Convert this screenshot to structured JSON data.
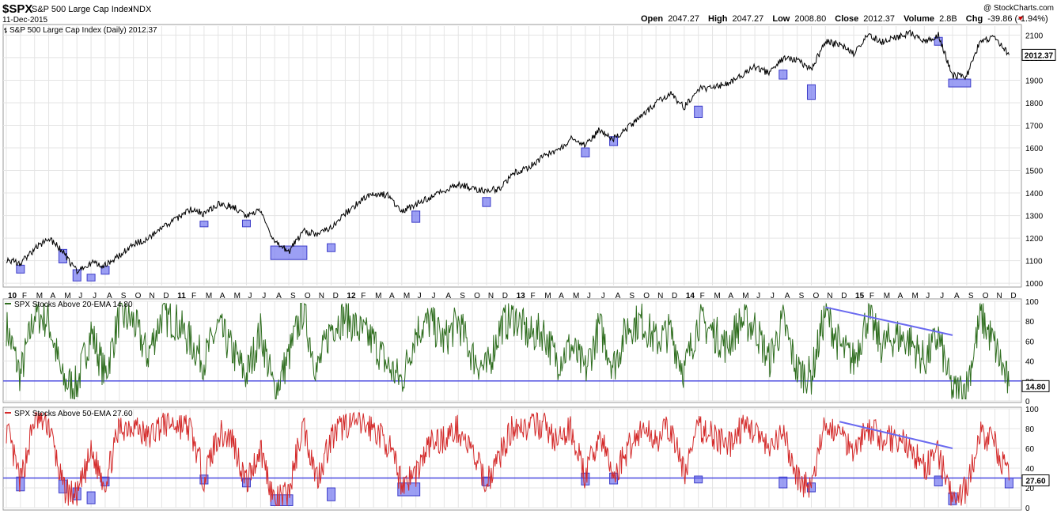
{
  "header": {
    "symbol": "$SPX",
    "name": "S&P 500 Large Cap Index",
    "exchange": "INDX",
    "date": "11-Dec-2015",
    "watermark": "@ StockCharts.com",
    "open_label": "Open",
    "open_value": "2047.27",
    "high_label": "High",
    "high_value": "2047.27",
    "low_label": "Low",
    "low_value": "2008.80",
    "close_label": "Close",
    "close_value": "2012.37",
    "volume_label": "Volume",
    "volume_value": "2.8B",
    "chg_label": "Chg",
    "chg_value": "-39.86 (-1.94%)",
    "chg_color": "#cc0000"
  },
  "chart_data": [
    {
      "type": "line",
      "title": "S&P 500 Large Cap Index (Daily) 2012.37",
      "ylim": [
        990,
        2140
      ],
      "yticks": [
        1000,
        1100,
        1200,
        1300,
        1400,
        1500,
        1600,
        1700,
        1800,
        1900,
        2000,
        2100
      ],
      "last_value_label": "2012.37",
      "line_color": "#000000",
      "x": [
        "2010-01",
        "2010-02",
        "2010-03",
        "2010-04",
        "2010-05",
        "2010-06",
        "2010-07",
        "2010-08",
        "2010-09",
        "2010-10",
        "2010-11",
        "2010-12",
        "2011-01",
        "2011-02",
        "2011-03",
        "2011-04",
        "2011-05",
        "2011-06",
        "2011-07",
        "2011-08",
        "2011-09",
        "2011-10",
        "2011-11",
        "2011-12",
        "2012-01",
        "2012-02",
        "2012-03",
        "2012-04",
        "2012-05",
        "2012-06",
        "2012-07",
        "2012-08",
        "2012-09",
        "2012-10",
        "2012-11",
        "2012-12",
        "2013-01",
        "2013-02",
        "2013-03",
        "2013-04",
        "2013-05",
        "2013-06",
        "2013-07",
        "2013-08",
        "2013-09",
        "2013-10",
        "2013-11",
        "2013-12",
        "2014-01",
        "2014-02",
        "2014-03",
        "2014-04",
        "2014-05",
        "2014-06",
        "2014-07",
        "2014-08",
        "2014-09",
        "2014-10",
        "2014-11",
        "2014-12",
        "2015-01",
        "2015-02",
        "2015-03",
        "2015-04",
        "2015-05",
        "2015-06",
        "2015-07",
        "2015-08",
        "2015-09",
        "2015-10",
        "2015-11",
        "2015-12"
      ],
      "values": [
        1105,
        1090,
        1150,
        1200,
        1140,
        1050,
        1090,
        1080,
        1120,
        1175,
        1195,
        1240,
        1285,
        1325,
        1310,
        1350,
        1340,
        1300,
        1325,
        1180,
        1140,
        1230,
        1220,
        1250,
        1310,
        1360,
        1400,
        1390,
        1320,
        1350,
        1380,
        1410,
        1440,
        1420,
        1410,
        1420,
        1490,
        1515,
        1560,
        1590,
        1640,
        1610,
        1680,
        1640,
        1690,
        1740,
        1800,
        1840,
        1780,
        1860,
        1870,
        1885,
        1920,
        1960,
        1930,
        1995,
        1990,
        1950,
        2070,
        2060,
        2020,
        2100,
        2070,
        2090,
        2110,
        2070,
        2100,
        1920,
        1920,
        2080,
        2085,
        2012.37
      ],
      "highlights": [
        {
          "x0": "2010-02",
          "x1": "2010-02",
          "y0": 1045,
          "y1": 1080
        },
        {
          "x0": "2010-05",
          "x1": "2010-05",
          "y0": 1090,
          "y1": 1150
        },
        {
          "x0": "2010-06",
          "x1": "2010-06",
          "y0": 1010,
          "y1": 1060
        },
        {
          "x0": "2010-07",
          "x1": "2010-07",
          "y0": 1010,
          "y1": 1040
        },
        {
          "x0": "2010-08",
          "x1": "2010-08",
          "y0": 1040,
          "y1": 1075
        },
        {
          "x0": "2011-03",
          "x1": "2011-03",
          "y0": 1250,
          "y1": 1275
        },
        {
          "x0": "2011-06",
          "x1": "2011-06",
          "y0": 1250,
          "y1": 1280
        },
        {
          "x0": "2011-08",
          "x1": "2011-10",
          "y0": 1105,
          "y1": 1165
        },
        {
          "x0": "2011-12",
          "x1": "2011-12",
          "y0": 1140,
          "y1": 1175
        },
        {
          "x0": "2012-06",
          "x1": "2012-06",
          "y0": 1270,
          "y1": 1320
        },
        {
          "x0": "2012-11",
          "x1": "2012-11",
          "y0": 1340,
          "y1": 1380
        },
        {
          "x0": "2013-06",
          "x1": "2013-06",
          "y0": 1560,
          "y1": 1600
        },
        {
          "x0": "2013-08",
          "x1": "2013-08",
          "y0": 1610,
          "y1": 1650
        },
        {
          "x0": "2014-02",
          "x1": "2014-02",
          "y0": 1735,
          "y1": 1785
        },
        {
          "x0": "2014-08",
          "x1": "2014-08",
          "y0": 1905,
          "y1": 1945
        },
        {
          "x0": "2014-10",
          "x1": "2014-10",
          "y0": 1815,
          "y1": 1880
        },
        {
          "x0": "2015-07",
          "x1": "2015-07",
          "y0": 2055,
          "y1": 2090
        },
        {
          "x0": "2015-08",
          "x1": "2015-09",
          "y0": 1870,
          "y1": 1905
        }
      ]
    },
    {
      "type": "line",
      "title": "SPX Stocks Above 20-EMA 14.80",
      "ylim": [
        0,
        100
      ],
      "yticks": [
        0,
        20,
        40,
        60,
        80,
        100
      ],
      "hline": 20,
      "last_value_label": "14.80",
      "line_color": "#2f6e1f",
      "x": [
        "2010-01",
        "2010-02",
        "2010-03",
        "2010-04",
        "2010-05",
        "2010-06",
        "2010-07",
        "2010-08",
        "2010-09",
        "2010-10",
        "2010-11",
        "2010-12",
        "2011-01",
        "2011-02",
        "2011-03",
        "2011-04",
        "2011-05",
        "2011-06",
        "2011-07",
        "2011-08",
        "2011-09",
        "2011-10",
        "2011-11",
        "2011-12",
        "2012-01",
        "2012-02",
        "2012-03",
        "2012-04",
        "2012-05",
        "2012-06",
        "2012-07",
        "2012-08",
        "2012-09",
        "2012-10",
        "2012-11",
        "2012-12",
        "2013-01",
        "2013-02",
        "2013-03",
        "2013-04",
        "2013-05",
        "2013-06",
        "2013-07",
        "2013-08",
        "2013-09",
        "2013-10",
        "2013-11",
        "2013-12",
        "2014-01",
        "2014-02",
        "2014-03",
        "2014-04",
        "2014-05",
        "2014-06",
        "2014-07",
        "2014-08",
        "2014-09",
        "2014-10",
        "2014-11",
        "2014-12",
        "2015-01",
        "2015-02",
        "2015-03",
        "2015-04",
        "2015-05",
        "2015-06",
        "2015-07",
        "2015-08",
        "2015-09",
        "2015-10",
        "2015-11",
        "2015-12"
      ],
      "values": [
        75,
        25,
        88,
        80,
        20,
        15,
        70,
        25,
        85,
        80,
        45,
        85,
        80,
        60,
        40,
        75,
        50,
        25,
        70,
        8,
        45,
        92,
        30,
        75,
        85,
        70,
        60,
        35,
        20,
        70,
        80,
        60,
        80,
        45,
        30,
        75,
        85,
        65,
        70,
        40,
        55,
        30,
        75,
        35,
        75,
        80,
        60,
        70,
        30,
        80,
        70,
        55,
        80,
        75,
        40,
        80,
        30,
        25,
        90,
        55,
        40,
        85,
        55,
        65,
        60,
        40,
        65,
        8,
        15,
        85,
        55,
        14.8
      ],
      "trendline": {
        "x0": "2014-11",
        "y0": 94,
        "x1": "2015-08",
        "y1": 66
      }
    },
    {
      "type": "line",
      "title": "SPX Stocks Above 50-EMA 27.60",
      "ylim": [
        0,
        100
      ],
      "yticks": [
        0,
        20,
        40,
        60,
        80,
        100
      ],
      "hline": 30,
      "last_value_label": "27.60",
      "line_color": "#d42b2b",
      "x": [
        "2010-01",
        "2010-02",
        "2010-03",
        "2010-04",
        "2010-05",
        "2010-06",
        "2010-07",
        "2010-08",
        "2010-09",
        "2010-10",
        "2010-11",
        "2010-12",
        "2011-01",
        "2011-02",
        "2011-03",
        "2011-04",
        "2011-05",
        "2011-06",
        "2011-07",
        "2011-08",
        "2011-09",
        "2011-10",
        "2011-11",
        "2011-12",
        "2012-01",
        "2012-02",
        "2012-03",
        "2012-04",
        "2012-05",
        "2012-06",
        "2012-07",
        "2012-08",
        "2012-09",
        "2012-10",
        "2012-11",
        "2012-12",
        "2013-01",
        "2013-02",
        "2013-03",
        "2013-04",
        "2013-05",
        "2013-06",
        "2013-07",
        "2013-08",
        "2013-09",
        "2013-10",
        "2013-11",
        "2013-12",
        "2014-01",
        "2014-02",
        "2014-03",
        "2014-04",
        "2014-05",
        "2014-06",
        "2014-07",
        "2014-08",
        "2014-09",
        "2014-10",
        "2014-11",
        "2014-12",
        "2015-01",
        "2015-02",
        "2015-03",
        "2015-04",
        "2015-05",
        "2015-06",
        "2015-07",
        "2015-08",
        "2015-09",
        "2015-10",
        "2015-11",
        "2015-12"
      ],
      "values": [
        80,
        25,
        90,
        85,
        20,
        10,
        55,
        25,
        80,
        85,
        70,
        85,
        85,
        80,
        30,
        75,
        70,
        25,
        60,
        5,
        15,
        85,
        30,
        70,
        85,
        85,
        80,
        65,
        25,
        35,
        65,
        70,
        80,
        55,
        25,
        55,
        85,
        80,
        85,
        65,
        80,
        30,
        75,
        30,
        60,
        80,
        70,
        80,
        35,
        80,
        75,
        60,
        80,
        80,
        55,
        75,
        30,
        20,
        85,
        75,
        60,
        80,
        70,
        70,
        60,
        40,
        55,
        5,
        20,
        75,
        65,
        27.6
      ],
      "trendline": {
        "x0": "2014-12",
        "y0": 87,
        "x1": "2015-08",
        "y1": 60
      },
      "highlights": [
        {
          "x0": "2010-02",
          "x1": "2010-02",
          "y0": 17,
          "y1": 31
        },
        {
          "x0": "2010-05",
          "x1": "2010-05",
          "y0": 15,
          "y1": 28
        },
        {
          "x0": "2010-06",
          "x1": "2010-06",
          "y0": 8,
          "y1": 20
        },
        {
          "x0": "2010-07",
          "x1": "2010-07",
          "y0": 4,
          "y1": 16
        },
        {
          "x0": "2010-08",
          "x1": "2010-08",
          "y0": 22,
          "y1": 31
        },
        {
          "x0": "2011-03",
          "x1": "2011-03",
          "y0": 24,
          "y1": 33
        },
        {
          "x0": "2011-06",
          "x1": "2011-06",
          "y0": 21,
          "y1": 29
        },
        {
          "x0": "2011-08",
          "x1": "2011-09",
          "y0": 2,
          "y1": 13
        },
        {
          "x0": "2011-12",
          "x1": "2011-12",
          "y0": 7,
          "y1": 20
        },
        {
          "x0": "2012-05",
          "x1": "2012-06",
          "y0": 12,
          "y1": 25
        },
        {
          "x0": "2012-11",
          "x1": "2012-11",
          "y0": 22,
          "y1": 31
        },
        {
          "x0": "2013-06",
          "x1": "2013-06",
          "y0": 23,
          "y1": 35
        },
        {
          "x0": "2013-08",
          "x1": "2013-08",
          "y0": 24,
          "y1": 35
        },
        {
          "x0": "2014-02",
          "x1": "2014-02",
          "y0": 25,
          "y1": 32
        },
        {
          "x0": "2014-08",
          "x1": "2014-08",
          "y0": 20,
          "y1": 31
        },
        {
          "x0": "2014-10",
          "x1": "2014-10",
          "y0": 16,
          "y1": 25
        },
        {
          "x0": "2015-07",
          "x1": "2015-07",
          "y0": 22,
          "y1": 32
        },
        {
          "x0": "2015-08",
          "x1": "2015-08",
          "y0": 3,
          "y1": 15
        },
        {
          "x0": "2015-12",
          "x1": "2015-12",
          "y0": 20,
          "y1": 30
        }
      ]
    }
  ],
  "x_axis": {
    "labels": [
      {
        "x": "2010-01",
        "text": "10",
        "year": true
      },
      {
        "x": "2010-02",
        "text": "F"
      },
      {
        "x": "2010-03",
        "text": "M"
      },
      {
        "x": "2010-04",
        "text": "A"
      },
      {
        "x": "2010-05",
        "text": "M"
      },
      {
        "x": "2010-06",
        "text": "J"
      },
      {
        "x": "2010-07",
        "text": "J"
      },
      {
        "x": "2010-08",
        "text": "A"
      },
      {
        "x": "2010-09",
        "text": "S"
      },
      {
        "x": "2010-10",
        "text": "O"
      },
      {
        "x": "2010-11",
        "text": "N"
      },
      {
        "x": "2010-12",
        "text": "D"
      },
      {
        "x": "2011-01",
        "text": "11",
        "year": true
      },
      {
        "x": "2011-02",
        "text": "F"
      },
      {
        "x": "2011-03",
        "text": "M"
      },
      {
        "x": "2011-04",
        "text": "A"
      },
      {
        "x": "2011-05",
        "text": "M"
      },
      {
        "x": "2011-06",
        "text": "J"
      },
      {
        "x": "2011-07",
        "text": "J"
      },
      {
        "x": "2011-08",
        "text": "A"
      },
      {
        "x": "2011-09",
        "text": "S"
      },
      {
        "x": "2011-10",
        "text": "O"
      },
      {
        "x": "2011-11",
        "text": "N"
      },
      {
        "x": "2011-12",
        "text": "D"
      },
      {
        "x": "2012-01",
        "text": "12",
        "year": true
      },
      {
        "x": "2012-02",
        "text": "F"
      },
      {
        "x": "2012-03",
        "text": "M"
      },
      {
        "x": "2012-04",
        "text": "A"
      },
      {
        "x": "2012-05",
        "text": "M"
      },
      {
        "x": "2012-06",
        "text": "J"
      },
      {
        "x": "2012-07",
        "text": "J"
      },
      {
        "x": "2012-08",
        "text": "A"
      },
      {
        "x": "2012-09",
        "text": "S"
      },
      {
        "x": "2012-10",
        "text": "O"
      },
      {
        "x": "2012-11",
        "text": "N"
      },
      {
        "x": "2012-12",
        "text": "D"
      },
      {
        "x": "2013-01",
        "text": "13",
        "year": true
      },
      {
        "x": "2013-02",
        "text": "F"
      },
      {
        "x": "2013-03",
        "text": "M"
      },
      {
        "x": "2013-04",
        "text": "A"
      },
      {
        "x": "2013-05",
        "text": "M"
      },
      {
        "x": "2013-06",
        "text": "J"
      },
      {
        "x": "2013-07",
        "text": "J"
      },
      {
        "x": "2013-08",
        "text": "A"
      },
      {
        "x": "2013-09",
        "text": "S"
      },
      {
        "x": "2013-10",
        "text": "O"
      },
      {
        "x": "2013-11",
        "text": "N"
      },
      {
        "x": "2013-12",
        "text": "D"
      },
      {
        "x": "2014-01",
        "text": "14",
        "year": true
      },
      {
        "x": "2014-02",
        "text": "F"
      },
      {
        "x": "2014-03",
        "text": "M"
      },
      {
        "x": "2014-04",
        "text": "A"
      },
      {
        "x": "2014-05",
        "text": "M"
      },
      {
        "x": "2014-06",
        "text": "J"
      },
      {
        "x": "2014-07",
        "text": "J"
      },
      {
        "x": "2014-08",
        "text": "A"
      },
      {
        "x": "2014-09",
        "text": "S"
      },
      {
        "x": "2014-10",
        "text": "O"
      },
      {
        "x": "2014-11",
        "text": "N"
      },
      {
        "x": "2014-12",
        "text": "D"
      },
      {
        "x": "2015-01",
        "text": "15",
        "year": true
      },
      {
        "x": "2015-02",
        "text": "F"
      },
      {
        "x": "2015-03",
        "text": "M"
      },
      {
        "x": "2015-04",
        "text": "A"
      },
      {
        "x": "2015-05",
        "text": "M"
      },
      {
        "x": "2015-06",
        "text": "J"
      },
      {
        "x": "2015-07",
        "text": "J"
      },
      {
        "x": "2015-08",
        "text": "A"
      },
      {
        "x": "2015-09",
        "text": "S"
      },
      {
        "x": "2015-10",
        "text": "O"
      },
      {
        "x": "2015-11",
        "text": "N"
      },
      {
        "x": "2015-12",
        "text": "D"
      }
    ]
  },
  "colors": {
    "highlight_fill": "#7b7ff0",
    "highlight_stroke": "#3c3cc8",
    "hline": "#4a4ae0",
    "trendline": "#6a6af0",
    "grid": "#e4e4e4",
    "frame": "#999999"
  }
}
